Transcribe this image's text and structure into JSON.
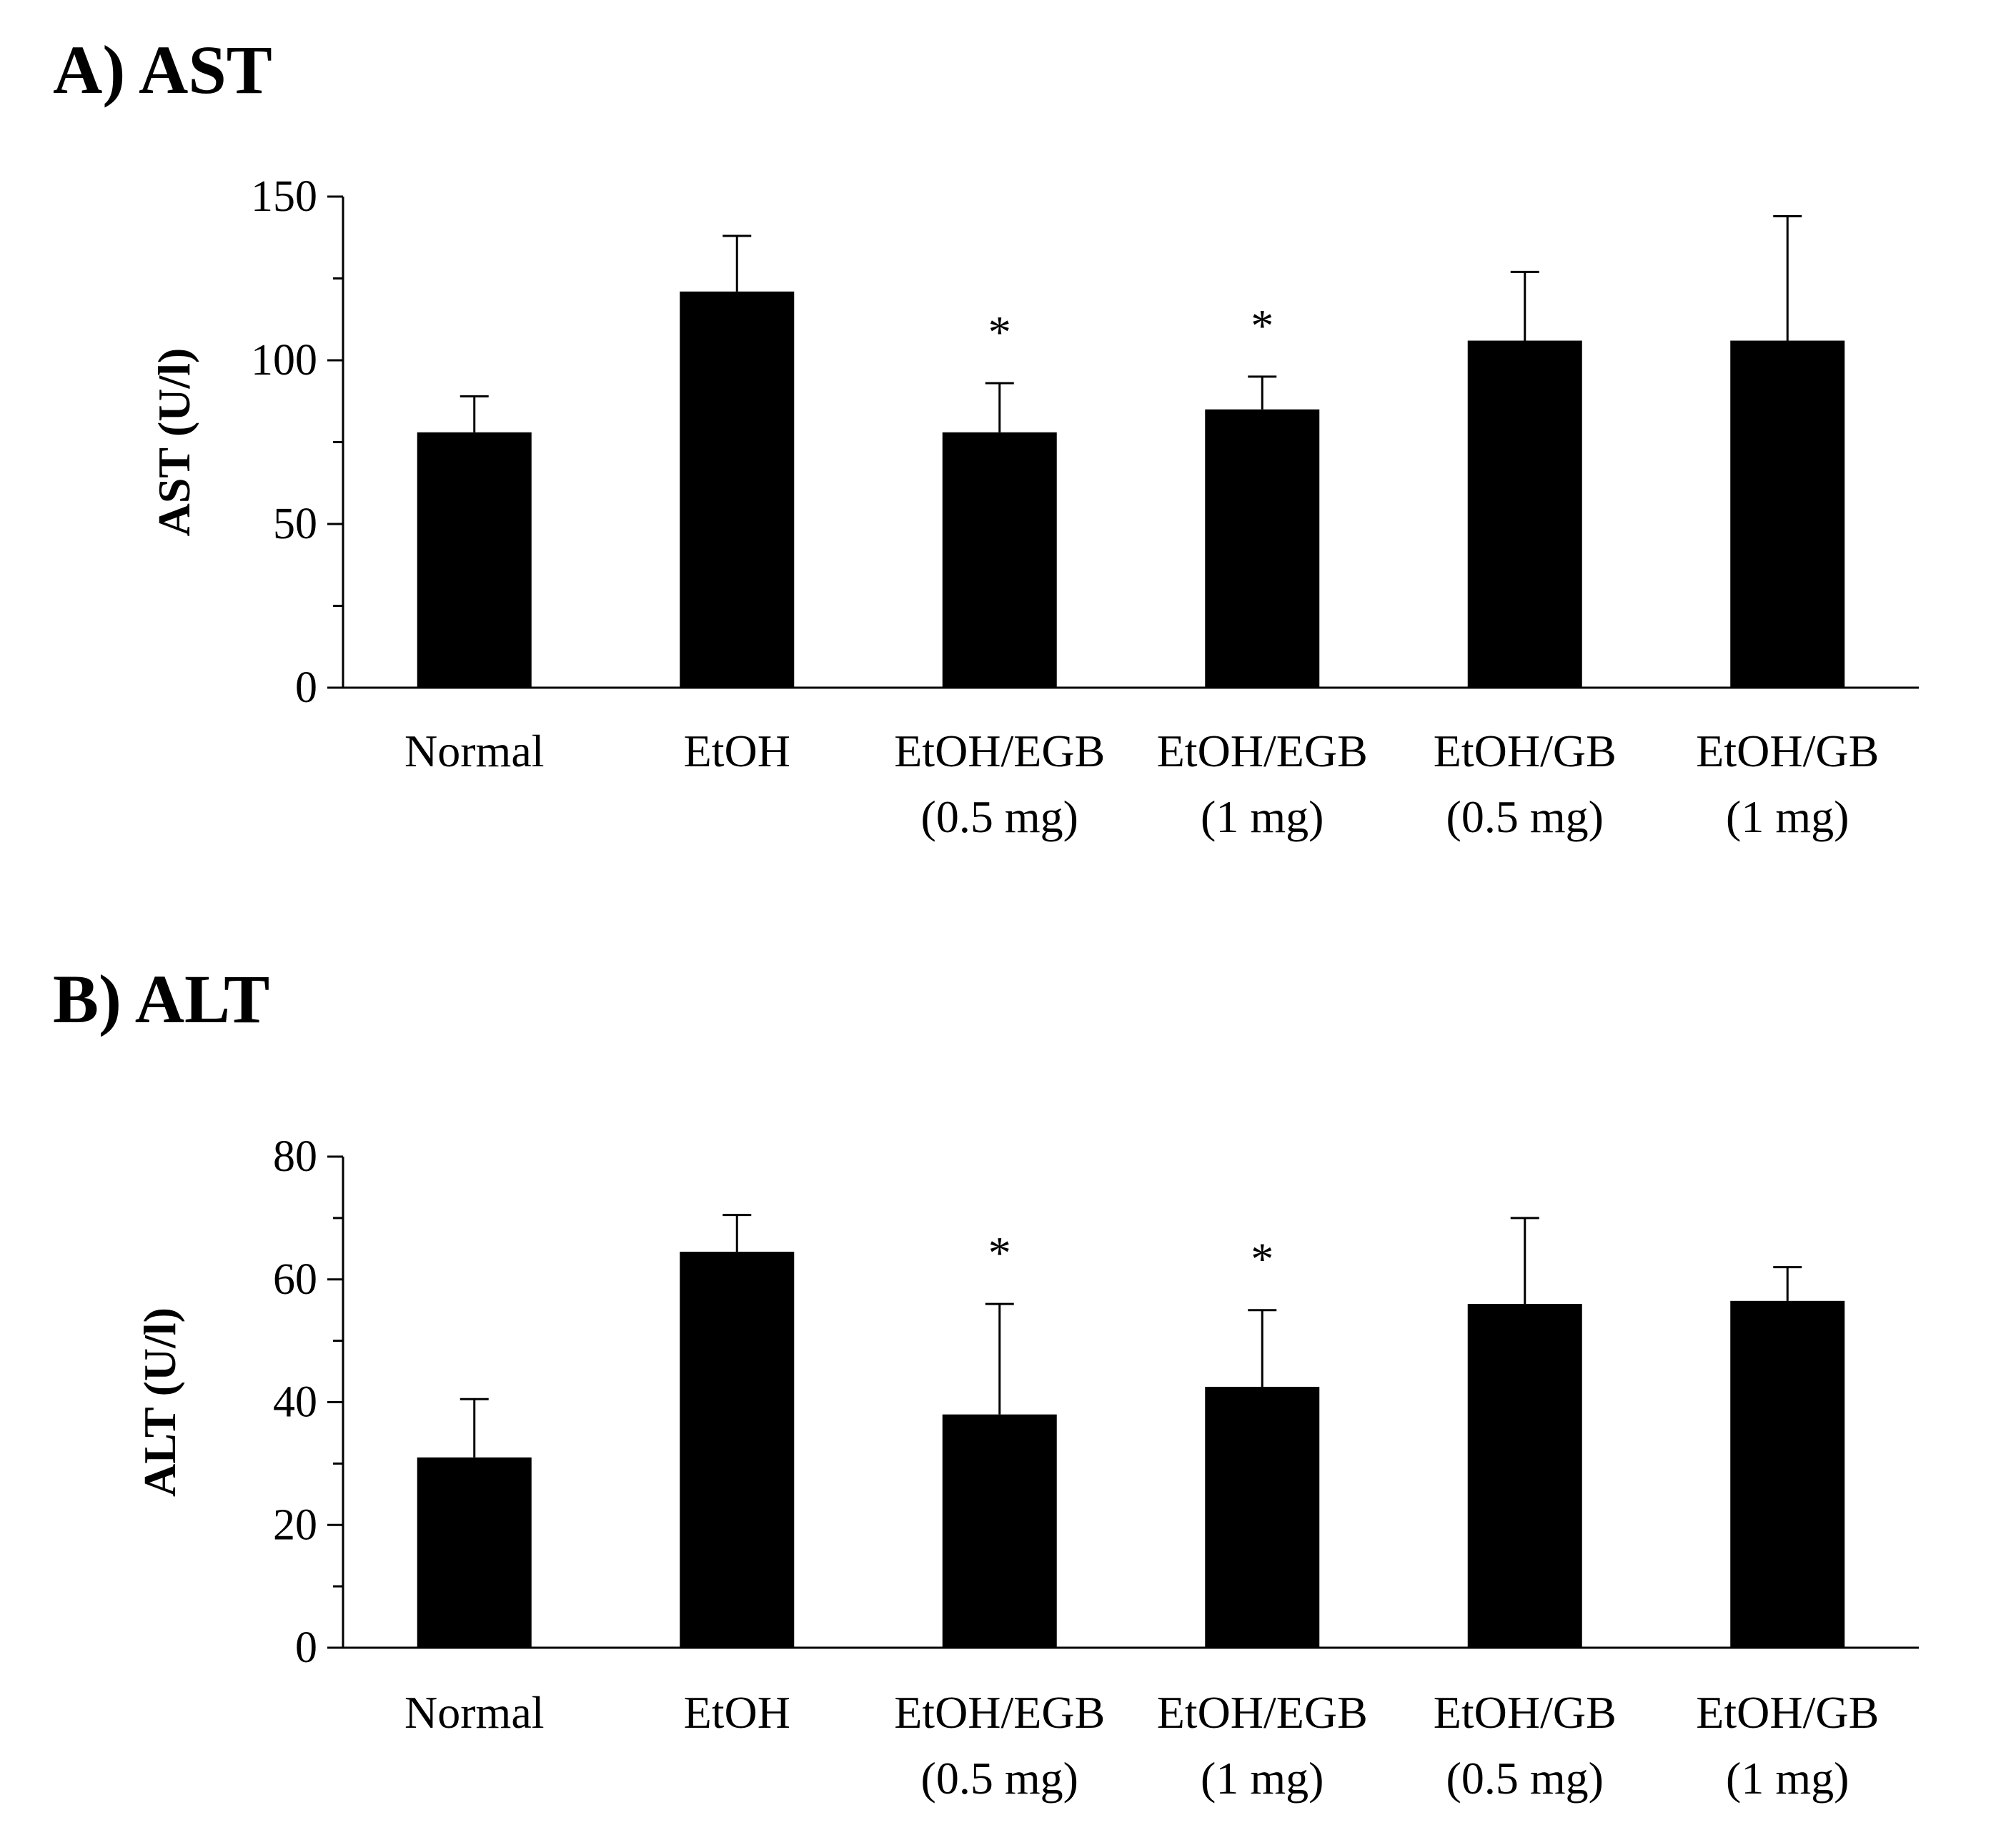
{
  "chart_data": [
    {
      "type": "bar",
      "panel_title": "A) AST",
      "ylabel": "AST (U/l)",
      "xlabel": "",
      "ylim": [
        0,
        150
      ],
      "yticks": [
        0,
        50,
        100,
        150
      ],
      "grid": false,
      "categories": [
        [
          "Normal"
        ],
        [
          "EtOH"
        ],
        [
          "EtOH/EGB",
          "(0.5 mg)"
        ],
        [
          "EtOH/EGB",
          "(1 mg)"
        ],
        [
          "EtOH/GB",
          "(0.5 mg)"
        ],
        [
          "EtOH/GB",
          "(1 mg)"
        ]
      ],
      "series": [
        {
          "name": "AST",
          "values": [
            78,
            121,
            78,
            85,
            106,
            106
          ],
          "error": [
            11,
            17,
            15,
            10,
            21,
            38
          ]
        }
      ],
      "significance": [
        "",
        "",
        "*",
        "*",
        "",
        ""
      ]
    },
    {
      "type": "bar",
      "panel_title": "B) ALT",
      "ylabel": "ALT (U/l)",
      "xlabel": "",
      "ylim": [
        0,
        80
      ],
      "yticks": [
        0,
        20,
        40,
        60,
        80
      ],
      "grid": false,
      "categories": [
        [
          "Normal"
        ],
        [
          "EtOH"
        ],
        [
          "EtOH/EGB",
          "(0.5 mg)"
        ],
        [
          "EtOH/EGB",
          "(1 mg)"
        ],
        [
          "EtOH/GB",
          "(0.5 mg)"
        ],
        [
          "EtOH/GB",
          "(1 mg)"
        ]
      ],
      "series": [
        {
          "name": "ALT",
          "values": [
            31,
            64.5,
            38,
            42.5,
            56,
            56.5
          ],
          "error": [
            9.5,
            6,
            18,
            12.5,
            14,
            5.5
          ]
        }
      ],
      "significance": [
        "",
        "",
        "*",
        "*",
        "",
        ""
      ]
    }
  ]
}
